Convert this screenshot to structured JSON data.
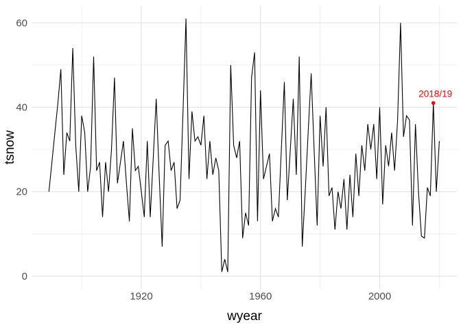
{
  "figure": {
    "kind": "ggplot-line-chart",
    "background": "#ffffff"
  },
  "chart_data": {
    "type": "line",
    "title": "",
    "xlabel": "wyear",
    "ylabel": "tsnow",
    "x_tick_labels": [
      "1920",
      "1960",
      "2000"
    ],
    "x_ticks": [
      1920,
      1960,
      2000
    ],
    "x_minor_gridlines": [
      1900,
      1940,
      1980,
      2020
    ],
    "y_tick_labels": [
      "0",
      "20",
      "40",
      "60"
    ],
    "y_ticks": [
      0,
      20,
      40,
      60
    ],
    "y_minor_gridlines": [
      10,
      30,
      50
    ],
    "xlim": [
      1883.4,
      2025.9
    ],
    "ylim": [
      -3.1,
      64.1
    ],
    "grid": "on",
    "legend": "none",
    "line_color": "#000000",
    "line_width": 1.1,
    "grid_major_color": "#e2e2e2",
    "grid_minor_color": "#f0f0f0",
    "tick_label_color": "#4d4d4d",
    "annotation": {
      "label": "2018/19",
      "x": 2018,
      "y": 41,
      "color": "#ff0000",
      "point_radius": 2.8
    },
    "x": [
      1889,
      1890,
      1891,
      1892,
      1893,
      1894,
      1895,
      1896,
      1897,
      1898,
      1899,
      1900,
      1901,
      1902,
      1903,
      1904,
      1905,
      1906,
      1907,
      1908,
      1909,
      1910,
      1911,
      1912,
      1913,
      1914,
      1915,
      1916,
      1917,
      1918,
      1919,
      1920,
      1921,
      1922,
      1923,
      1924,
      1925,
      1926,
      1927,
      1928,
      1929,
      1930,
      1931,
      1932,
      1933,
      1934,
      1935,
      1936,
      1937,
      1938,
      1939,
      1940,
      1941,
      1942,
      1943,
      1944,
      1945,
      1946,
      1947,
      1948,
      1949,
      1950,
      1951,
      1952,
      1953,
      1954,
      1955,
      1956,
      1957,
      1958,
      1959,
      1960,
      1961,
      1962,
      1963,
      1964,
      1965,
      1966,
      1967,
      1968,
      1969,
      1970,
      1971,
      1972,
      1973,
      1974,
      1975,
      1976,
      1977,
      1978,
      1979,
      1980,
      1981,
      1982,
      1983,
      1984,
      1985,
      1986,
      1987,
      1988,
      1989,
      1990,
      1991,
      1992,
      1993,
      1994,
      1995,
      1996,
      1997,
      1998,
      1999,
      2000,
      2001,
      2002,
      2003,
      2004,
      2005,
      2006,
      2007,
      2008,
      2009,
      2010,
      2011,
      2012,
      2013,
      2014,
      2015,
      2016,
      2017,
      2018,
      2019,
      2020
    ],
    "values": [
      20,
      27,
      34,
      41,
      49,
      24,
      34,
      32,
      54,
      31,
      20,
      38,
      34,
      20,
      26,
      52,
      25,
      27,
      14,
      27,
      20,
      30,
      47,
      22,
      27,
      32,
      22,
      13,
      35,
      25,
      26,
      20,
      14,
      32,
      14,
      28,
      42,
      24,
      7,
      31,
      32,
      25,
      27,
      16,
      18,
      39,
      61,
      23,
      39,
      32,
      33,
      31,
      38,
      23,
      32,
      24,
      28,
      25,
      1,
      4,
      1,
      50,
      31,
      28,
      32,
      9,
      15,
      12,
      47,
      53,
      13,
      44,
      23,
      26,
      29,
      13,
      16,
      14,
      30,
      46,
      18,
      30,
      42,
      24,
      52,
      7,
      20,
      34,
      48,
      30,
      12,
      38,
      26,
      40,
      19,
      21,
      11,
      20,
      16,
      23,
      11,
      24,
      14,
      29,
      19,
      31,
      25,
      36,
      30,
      36,
      23,
      40,
      17,
      31,
      26,
      34,
      25,
      37,
      60,
      33,
      38,
      37,
      12,
      36,
      20,
      9.5,
      9,
      21,
      19,
      41,
      20,
      32
    ]
  }
}
